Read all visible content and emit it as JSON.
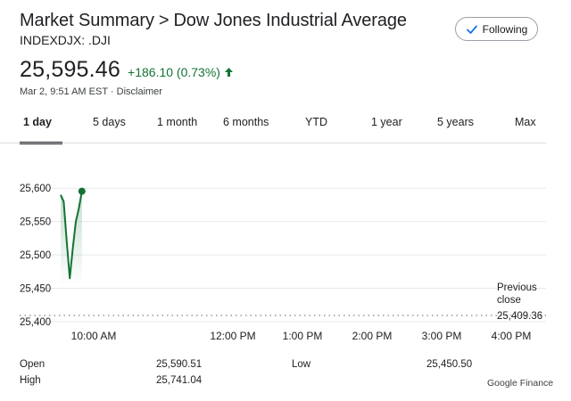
{
  "header": {
    "breadcrumb_root": "Market Summary",
    "breadcrumb_sep": ">",
    "index_name": "Dow Jones Industrial Average",
    "ticker": "INDEXDJX: .DJI",
    "follow_label": "Following"
  },
  "quote": {
    "price": "25,595.46",
    "change": "+186.10 (0.73%)",
    "direction": "up",
    "timestamp": "Mar 2, 9:51 AM EST",
    "disclaimer": "Disclaimer",
    "positive_color": "#137333"
  },
  "tabs": [
    "1 day",
    "5 days",
    "1 month",
    "6 months",
    "YTD",
    "1 year",
    "5 years",
    "Max"
  ],
  "active_tab": "1 day",
  "chart_data": {
    "type": "line",
    "x": [
      "09:30",
      "09:33",
      "09:36",
      "09:39",
      "09:42",
      "09:45",
      "09:48",
      "09:51"
    ],
    "values": [
      25590,
      25580,
      25520,
      25465,
      25510,
      25550,
      25570,
      25595.46
    ],
    "y_ticks": [
      "25,600",
      "25,550",
      "25,500",
      "25,450",
      "25,400"
    ],
    "ylim": [
      25400,
      25615
    ],
    "x_ticks": [
      "10:00 AM",
      "12:00 PM",
      "1:00 PM",
      "2:00 PM",
      "3:00 PM",
      "4:00 PM"
    ],
    "x_tick_times": [
      10,
      12,
      13,
      14,
      15,
      16
    ],
    "xlim_hours": [
      9.5,
      16.5
    ],
    "previous_close": 25409.36,
    "previous_close_label_line1": "Previous",
    "previous_close_label_line2": "close",
    "previous_close_text": "25,409.36",
    "line_color": "#137333",
    "grid": true
  },
  "stats": {
    "open_label": "Open",
    "open_value": "25,590.51",
    "high_label": "High",
    "high_value": "25,741.04",
    "low_label": "Low",
    "low_value": "25,450.50"
  },
  "attribution": "Google Finance"
}
